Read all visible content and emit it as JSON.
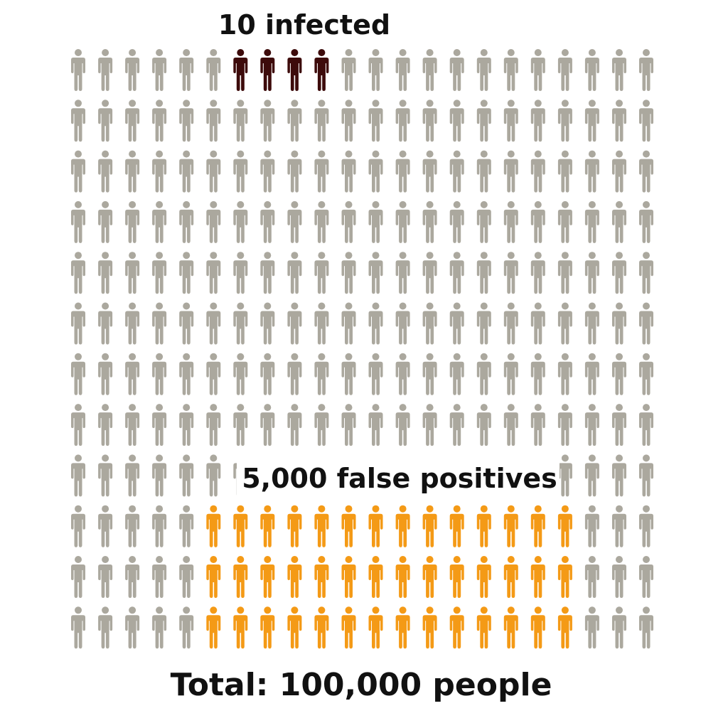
{
  "chart_data": {
    "type": "pictogram",
    "grid": {
      "rows": 12,
      "cols": 22
    },
    "labels": {
      "infected": "10 infected",
      "false_positives": "5,000 false positives",
      "total": "Total: 100,000 people"
    },
    "groups": [
      {
        "key": "infected",
        "count": 4,
        "rows": [
          1,
          1
        ],
        "cols": [
          7,
          10
        ]
      },
      {
        "key": "false_positives",
        "count": 42,
        "rows": [
          10,
          12
        ],
        "cols": [
          6,
          19
        ]
      },
      {
        "key": "population",
        "count": 218
      }
    ],
    "colors": {
      "population": "#aba89e",
      "infected": "#3d0b0b",
      "false_positives": "#f49a16"
    }
  }
}
